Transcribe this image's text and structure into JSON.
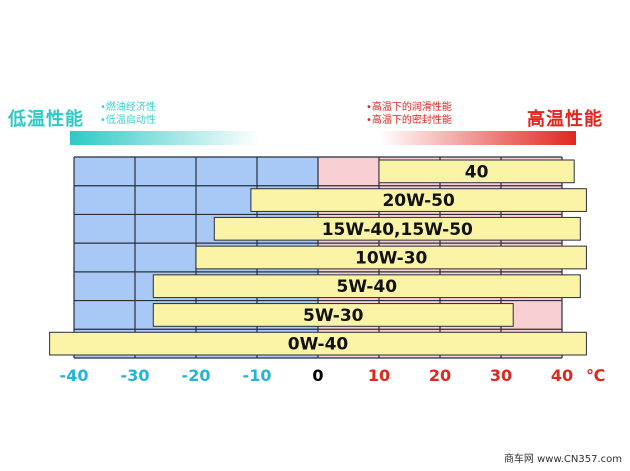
{
  "left_panel": {
    "title": "低温性能",
    "notes": [
      "•燃油经济性",
      "•低温启动性"
    ],
    "color": "#2ec9c6"
  },
  "right_panel": {
    "title": "高温性能",
    "notes": [
      "•高温下的润滑性能",
      "•高温下的密封性能"
    ],
    "color": "#e0261f"
  },
  "watermark": "商车网 www.CN357.com",
  "chart_data": {
    "type": "bar",
    "orientation": "horizontal-range",
    "x_unit": "℃",
    "x_ticks": [
      -40,
      -30,
      -20,
      -10,
      0,
      10,
      20,
      30,
      40
    ],
    "x_tick_labels": [
      "-40",
      "-30",
      "-20",
      "-10",
      "0",
      "10",
      "20",
      "30",
      "40"
    ],
    "xlim": [
      -40,
      40
    ],
    "grid": true,
    "background_zones": [
      {
        "from": -40,
        "to": 0,
        "color": "#a8c8f5"
      },
      {
        "from": 0,
        "to": 40,
        "color": "#f8cfd2"
      }
    ],
    "tick_colors": {
      "negative": "#25b4d9",
      "zero": "#000000",
      "positive": "#e0261f"
    },
    "bar_color": "#fbf3a6",
    "bars": [
      {
        "label": "40",
        "start": 10,
        "end": 42
      },
      {
        "label": "20W-50",
        "start": -11,
        "end": 44
      },
      {
        "label": "15W-40,15W-50",
        "start": -17,
        "end": 43
      },
      {
        "label": "10W-30",
        "start": -20,
        "end": 44
      },
      {
        "label": "5W-40",
        "start": -27,
        "end": 43
      },
      {
        "label": "5W-30",
        "start": -27,
        "end": 32
      },
      {
        "label": "0W-40",
        "start": -44,
        "end": 44
      }
    ]
  }
}
